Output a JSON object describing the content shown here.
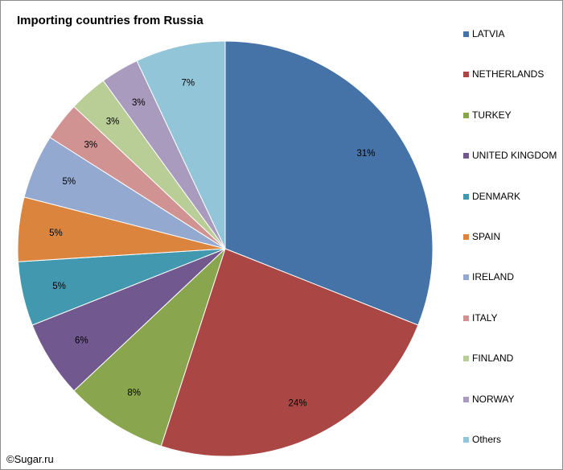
{
  "chart_data": {
    "type": "pie",
    "title": "Importing countries from Russia",
    "categories": [
      "LATVIA",
      "NETHERLANDS",
      "TURKEY",
      "UNITED KINGDOM",
      "DENMARK",
      "SPAIN",
      "IRELAND",
      "ITALY",
      "FINLAND",
      "NORWAY",
      "Others"
    ],
    "values": [
      31,
      24,
      8,
      6,
      5,
      5,
      5,
      3,
      3,
      3,
      7
    ],
    "labels": [
      "31%",
      "24%",
      "8%",
      "6%",
      "5%",
      "5%",
      "5%",
      "3%",
      "3%",
      "3%",
      "7%"
    ],
    "colors": [
      "#4572A7",
      "#AA4643",
      "#89A54E",
      "#71588F",
      "#4198AF",
      "#DB843D",
      "#93A9CF",
      "#D19392",
      "#B9CD96",
      "#A99BBD",
      "#92C5D8"
    ],
    "legend_position": "right"
  },
  "watermark": "©Sugar.ru"
}
